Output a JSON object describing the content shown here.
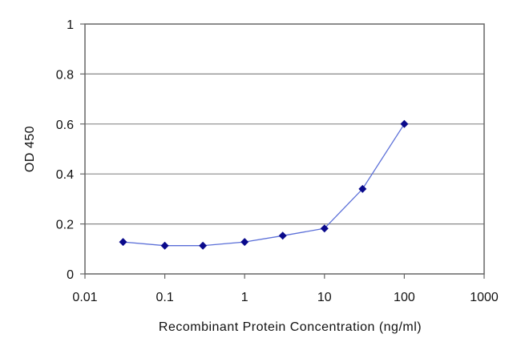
{
  "chart_data": {
    "type": "scatter",
    "title": "",
    "xlabel": "Recombinant Protein Concentration (ng/ml)",
    "ylabel": "OD 450",
    "x_scale": "log",
    "xlim": [
      0.01,
      1000
    ],
    "ylim": [
      0,
      1
    ],
    "x_ticks": [
      "0.01",
      "0.1",
      "1",
      "10",
      "100",
      "1000"
    ],
    "y_ticks": [
      "0",
      "0.2",
      "0.4",
      "0.6",
      "0.8",
      "1"
    ],
    "grid": "horizontal",
    "legend": "none",
    "colors": {
      "line": "#5b6fd8",
      "marker": "#0a0a8c",
      "grid": "#888888",
      "frame": "#666666"
    },
    "series": [
      {
        "x": [
          0.03,
          0.1,
          0.3,
          1,
          3,
          10,
          30,
          100
        ],
        "y": [
          0.128,
          0.113,
          0.113,
          0.128,
          0.153,
          0.182,
          0.34,
          0.6
        ]
      }
    ]
  }
}
